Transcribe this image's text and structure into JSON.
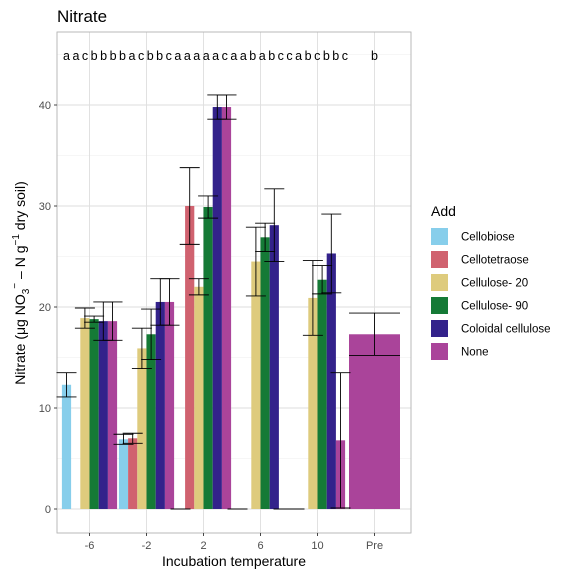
{
  "chart_data": {
    "type": "bar",
    "title": "Nitrate",
    "xlabel": "Incubation temperature",
    "ylabel_parts": [
      "Nitrate (μg NO",
      "3",
      "−",
      " – N g",
      "−1",
      " dry soil)"
    ],
    "ylim": [
      0,
      43
    ],
    "yticks": [
      0,
      10,
      20,
      30,
      40
    ],
    "categories": [
      "-6",
      "-2",
      "2",
      "6",
      "10",
      "Pre"
    ],
    "legend_title": "Add",
    "legend_position": "right",
    "grid": true,
    "series": [
      {
        "name": "Cellobiose",
        "color": "#87CEEB",
        "values": [
          12.3,
          6.9,
          0,
          0,
          0,
          null
        ],
        "errors": [
          1.2,
          0.5,
          0,
          0,
          0,
          null
        ]
      },
      {
        "name": "Cellotetraose",
        "color": "#D0626F",
        "values": [
          null,
          7.0,
          30.0,
          null,
          null,
          null
        ],
        "errors": [
          null,
          0.5,
          3.8,
          null,
          null,
          null
        ]
      },
      {
        "name": "Cellulose- 20",
        "color": "#DECB7D",
        "values": [
          18.9,
          15.9,
          22.0,
          24.5,
          20.9,
          null
        ],
        "errors": [
          1.0,
          2.0,
          0.8,
          3.4,
          3.7,
          null
        ]
      },
      {
        "name": "Cellulose- 90",
        "color": "#157A36",
        "values": [
          18.8,
          17.3,
          29.9,
          26.9,
          22.7,
          null
        ],
        "errors": [
          0.3,
          2.5,
          1.1,
          1.4,
          1.4,
          null
        ]
      },
      {
        "name": "Coloidal cellulose",
        "color": "#33228B",
        "values": [
          18.6,
          20.5,
          39.8,
          28.1,
          25.3,
          null
        ],
        "errors": [
          1.9,
          2.3,
          1.2,
          3.6,
          3.9,
          null
        ]
      },
      {
        "name": "None",
        "color": "#AA449A",
        "values": [
          18.6,
          20.5,
          39.8,
          0,
          6.8,
          17.3
        ],
        "errors": [
          1.9,
          2.3,
          1.2,
          0,
          6.7,
          2.1
        ]
      }
    ],
    "annotations": [
      "a a c b b b b a c b b c a a a a a c a a b a b c c a b c b b c",
      "b"
    ]
  }
}
